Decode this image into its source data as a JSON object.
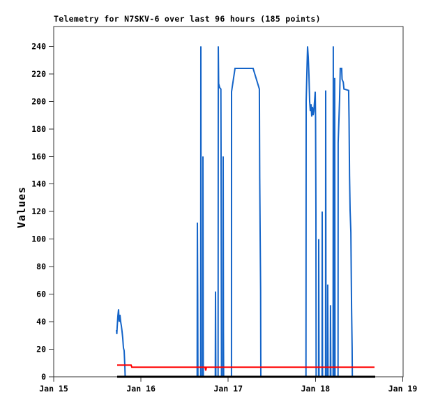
{
  "chart_data": {
    "type": "line",
    "title": "Telemetry for N7SKV-6 over last 96 hours (185 points)",
    "xlabel": "",
    "ylabel": "Values",
    "x_unit": "days since Jan 15 at left edge",
    "xlim": [
      0,
      4.004
    ],
    "ylim": [
      0,
      254.4
    ],
    "grid": false,
    "legend": "none",
    "background": "#ffffff",
    "frame_color": "#333333",
    "text_color": "#000000",
    "y_ticks": [
      0,
      20,
      40,
      60,
      80,
      100,
      120,
      140,
      160,
      180,
      200,
      220,
      240
    ],
    "x_ticks": [
      {
        "t": 0,
        "label": "Jan 15"
      },
      {
        "t": 1,
        "label": "Jan 16"
      },
      {
        "t": 2,
        "label": "Jan 17"
      },
      {
        "t": 3,
        "label": "Jan 18"
      },
      {
        "t": 4,
        "label": "Jan 19"
      }
    ],
    "series": [
      {
        "name": "telemetry-blue",
        "color": "#1464c8",
        "width": 2,
        "segments": [
          [
            [
              0.719,
              34
            ],
            [
              0.723,
              31
            ],
            [
              0.727,
              36
            ],
            [
              0.735,
              44
            ],
            [
              0.743,
              49
            ],
            [
              0.747,
              43
            ],
            [
              0.751,
              40
            ],
            [
              0.759,
              45
            ],
            [
              0.767,
              40
            ],
            [
              0.775,
              37
            ],
            [
              0.783,
              33
            ],
            [
              0.791,
              28
            ],
            [
              0.799,
              21
            ],
            [
              0.807,
              19
            ],
            [
              0.815,
              8
            ],
            [
              0.819,
              0
            ]
          ],
          [
            [
              1.644,
              0
            ],
            [
              1.646,
              112
            ],
            [
              1.65,
              57
            ],
            [
              1.653,
              0
            ]
          ],
          [
            [
              1.684,
              0
            ],
            [
              1.686,
              240
            ],
            [
              1.69,
              0
            ]
          ],
          [
            [
              1.708,
              0
            ],
            [
              1.71,
              160
            ],
            [
              1.714,
              0
            ]
          ],
          [
            [
              1.852,
              0
            ],
            [
              1.854,
              62
            ],
            [
              1.858,
              0
            ]
          ],
          [
            [
              1.884,
              0
            ],
            [
              1.886,
              240
            ],
            [
              1.89,
              213
            ],
            [
              1.902,
              210
            ],
            [
              1.916,
              209
            ],
            [
              1.918,
              160
            ],
            [
              1.923,
              0
            ]
          ],
          [
            [
              1.94,
              0
            ],
            [
              1.942,
              160
            ],
            [
              1.945,
              32
            ],
            [
              1.948,
              0
            ]
          ],
          [
            [
              2.037,
              0
            ],
            [
              2.038,
              207
            ],
            [
              2.078,
              224
            ],
            [
              2.285,
              224
            ],
            [
              2.357,
              209
            ],
            [
              2.361,
              145
            ],
            [
              2.366,
              105
            ],
            [
              2.371,
              63
            ],
            [
              2.373,
              20
            ],
            [
              2.374,
              0
            ]
          ],
          [
            [
              2.891,
              0
            ],
            [
              2.893,
              200
            ],
            [
              2.909,
              240
            ],
            [
              2.917,
              232
            ],
            [
              2.925,
              219
            ],
            [
              2.933,
              200
            ],
            [
              2.941,
              193
            ],
            [
              2.949,
              198
            ],
            [
              2.957,
              189
            ],
            [
              2.965,
              196
            ],
            [
              2.973,
              190
            ],
            [
              2.981,
              193
            ],
            [
              2.989,
              200
            ],
            [
              2.997,
              207
            ],
            [
              3.001,
              187
            ],
            [
              3.005,
              119
            ],
            [
              3.007,
              0
            ]
          ],
          [
            [
              3.035,
              0
            ],
            [
              3.037,
              100
            ],
            [
              3.041,
              0
            ]
          ],
          [
            [
              3.075,
              0
            ],
            [
              3.077,
              120
            ],
            [
              3.081,
              0
            ]
          ],
          [
            [
              3.115,
              0
            ],
            [
              3.117,
              208
            ],
            [
              3.121,
              0
            ]
          ],
          [
            [
              3.138,
              0
            ],
            [
              3.14,
              67
            ],
            [
              3.144,
              0
            ]
          ],
          [
            [
              3.17,
              0
            ],
            [
              3.172,
              52
            ],
            [
              3.176,
              0
            ]
          ],
          [
            [
              3.202,
              0
            ],
            [
              3.204,
              240
            ],
            [
              3.208,
              0
            ]
          ],
          [
            [
              3.218,
              0
            ],
            [
              3.22,
              217
            ],
            [
              3.224,
              0
            ]
          ],
          [
            [
              3.258,
              0
            ],
            [
              3.26,
              170
            ],
            [
              3.276,
              201
            ],
            [
              3.284,
              224
            ],
            [
              3.3,
              224
            ],
            [
              3.305,
              216
            ],
            [
              3.318,
              214
            ],
            [
              3.326,
              209
            ],
            [
              3.38,
              208
            ],
            [
              3.385,
              187
            ],
            [
              3.39,
              146
            ],
            [
              3.397,
              121
            ],
            [
              3.405,
              105
            ],
            [
              3.413,
              50
            ],
            [
              3.42,
              21
            ],
            [
              3.422,
              0
            ]
          ]
        ]
      },
      {
        "name": "telemetry-red",
        "color": "#ff0000",
        "width": 2,
        "segments": [
          [
            [
              0.727,
              8.5
            ],
            [
              0.887,
              8.5
            ],
            [
              0.895,
              7
            ],
            [
              1.735,
              7
            ],
            [
              1.742,
              4.5
            ],
            [
              1.75,
              7
            ],
            [
              3.676,
              7
            ]
          ]
        ]
      },
      {
        "name": "telemetry-black-zero",
        "color": "#000000",
        "width": 3,
        "segments": [
          [
            [
              0.727,
              0
            ],
            [
              3.684,
              0
            ]
          ]
        ]
      }
    ]
  }
}
